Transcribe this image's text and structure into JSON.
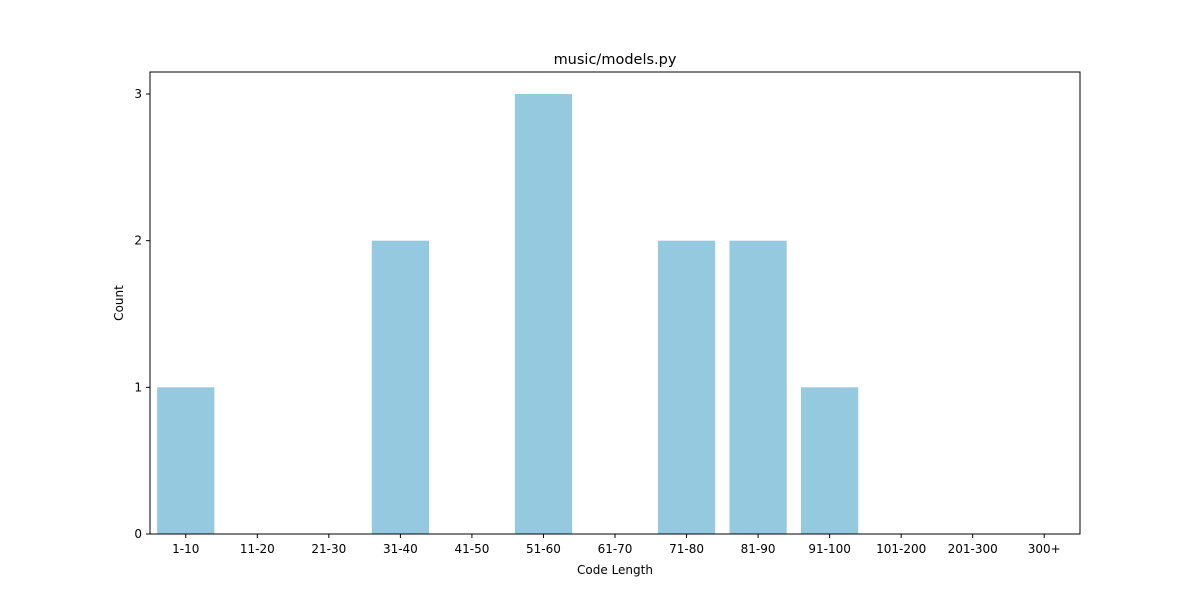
{
  "chart_data": {
    "type": "bar",
    "title": "music/models.py",
    "xlabel": "Code Length",
    "ylabel": "Count",
    "categories": [
      "1-10",
      "11-20",
      "21-30",
      "31-40",
      "41-50",
      "51-60",
      "61-70",
      "71-80",
      "81-90",
      "91-100",
      "101-200",
      "201-300",
      "300+"
    ],
    "values": [
      1,
      0,
      0,
      2,
      0,
      3,
      0,
      2,
      2,
      1,
      0,
      0,
      0
    ],
    "ylim": [
      0,
      3.15
    ],
    "yticks": [
      0,
      1,
      2,
      3
    ],
    "grid": false,
    "legend": null,
    "bar_color": "#95c9df"
  }
}
